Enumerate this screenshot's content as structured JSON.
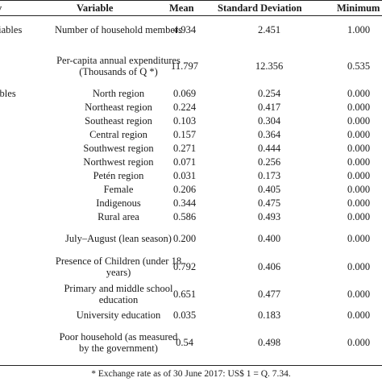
{
  "header": {
    "group": "y",
    "variable": "Variable",
    "mean": "Mean",
    "sd": "Standard Deviation",
    "min": "Minimum"
  },
  "rows": [
    {
      "group": "riables",
      "variable": "Number of household members",
      "mean": "4.934",
      "sd": "2.451",
      "min": "1.000"
    },
    {
      "group": "",
      "variable": "Per-capita annual expenditures (Thousands of Q *)",
      "mean": "11.797",
      "sd": "12.356",
      "min": "0.535"
    },
    {
      "group": "ables",
      "variable": "North region",
      "mean": "0.069",
      "sd": "0.254",
      "min": "0.000"
    },
    {
      "group": "",
      "variable": "Northeast region",
      "mean": "0.224",
      "sd": "0.417",
      "min": "0.000"
    },
    {
      "group": "",
      "variable": "Southeast region",
      "mean": "0.103",
      "sd": "0.304",
      "min": "0.000"
    },
    {
      "group": "",
      "variable": "Central region",
      "mean": "0.157",
      "sd": "0.364",
      "min": "0.000"
    },
    {
      "group": "",
      "variable": "Southwest region",
      "mean": "0.271",
      "sd": "0.444",
      "min": "0.000"
    },
    {
      "group": "",
      "variable": "Northwest region",
      "mean": "0.071",
      "sd": "0.256",
      "min": "0.000"
    },
    {
      "group": "",
      "variable": "Petén region",
      "mean": "0.031",
      "sd": "0.173",
      "min": "0.000"
    },
    {
      "group": "",
      "variable": "Female",
      "mean": "0.206",
      "sd": "0.405",
      "min": "0.000"
    },
    {
      "group": "",
      "variable": "Indigenous",
      "mean": "0.344",
      "sd": "0.475",
      "min": "0.000"
    },
    {
      "group": "",
      "variable": "Rural area",
      "mean": "0.586",
      "sd": "0.493",
      "min": "0.000"
    },
    {
      "group": "",
      "variable": "July–August (lean season)",
      "mean": "0.200",
      "sd": "0.400",
      "min": "0.000"
    },
    {
      "group": "",
      "variable": "Presence of Children (under 18 years)",
      "mean": "0.792",
      "sd": "0.406",
      "min": "0.000"
    },
    {
      "group": "",
      "variable": "Primary and middle school education",
      "mean": "0.651",
      "sd": "0.477",
      "min": "0.000"
    },
    {
      "group": "",
      "variable": "University education",
      "mean": "0.035",
      "sd": "0.183",
      "min": "0.000"
    },
    {
      "group": "",
      "variable": "Poor household (as measured by the government)",
      "mean": "0.54",
      "sd": "0.498",
      "min": "0.000"
    }
  ],
  "footnote": "* Exchange rate as of 30 June 2017: US$ 1 = Q. 7.34."
}
